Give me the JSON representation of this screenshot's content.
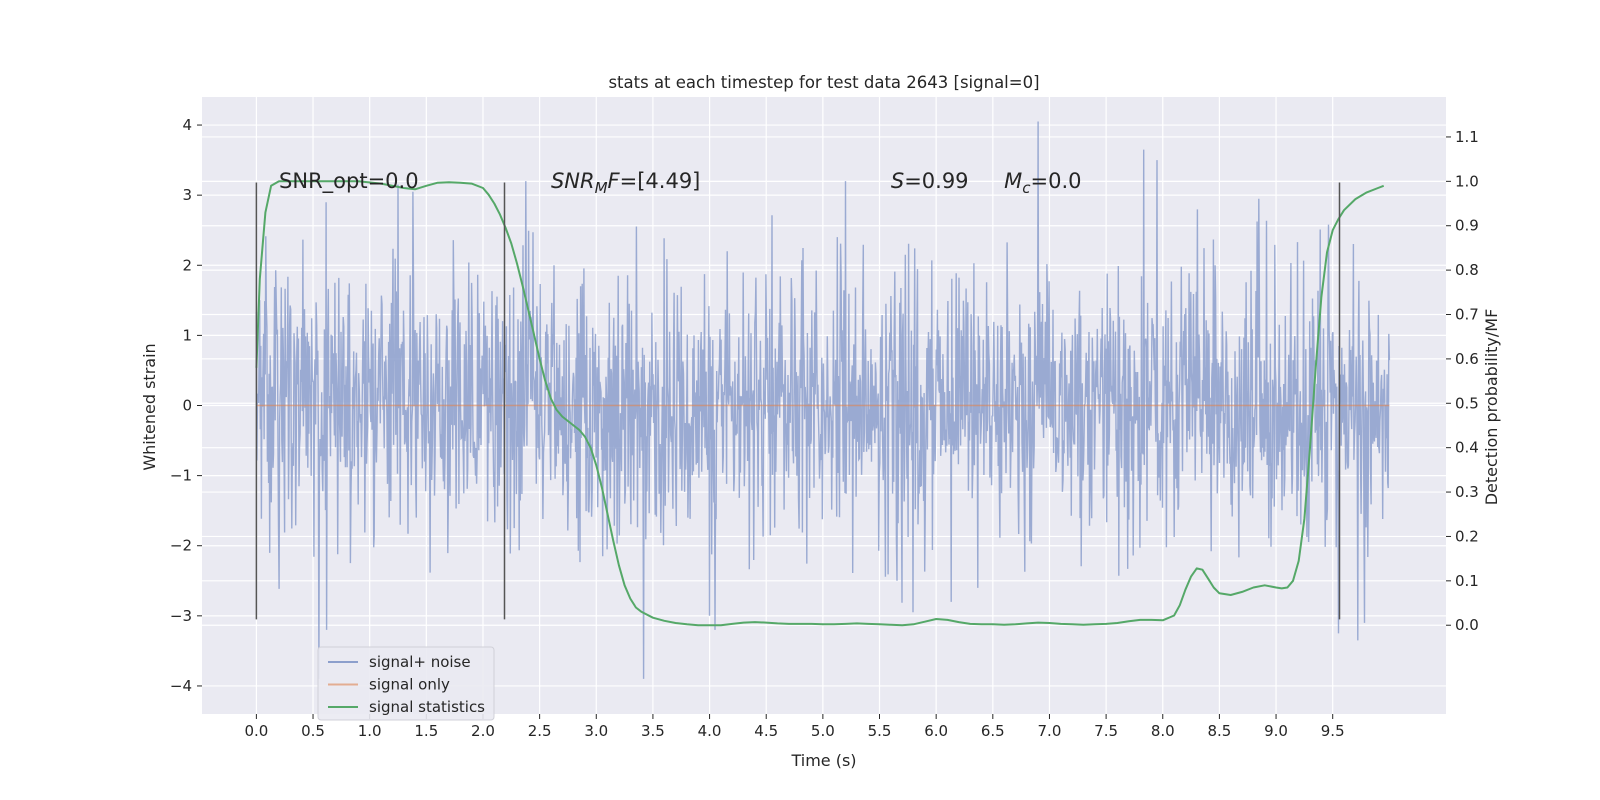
{
  "chart_data": {
    "type": "line",
    "title": "stats at each timestep for test data 2643 [signal=0]",
    "xlabel": "Time (s)",
    "ylabel": "Whitened strain",
    "y2label": "Detection probability/MF",
    "xlim": [
      -0.48,
      10.5
    ],
    "ylim": [
      -4.4,
      4.4
    ],
    "y2lim": [
      -0.2,
      1.19
    ],
    "x_ticks": [
      0.0,
      0.5,
      1.0,
      1.5,
      2.0,
      2.5,
      3.0,
      3.5,
      4.0,
      4.5,
      5.0,
      5.5,
      6.0,
      6.5,
      7.0,
      7.5,
      8.0,
      8.5,
      9.0,
      9.5
    ],
    "x_tick_labels": [
      "0.0",
      "0.5",
      "1.0",
      "1.5",
      "2.0",
      "2.5",
      "3.0",
      "3.5",
      "4.0",
      "4.5",
      "5.0",
      "5.5",
      "6.0",
      "6.5",
      "7.0",
      "7.5",
      "8.0",
      "8.5",
      "9.0",
      "9.5"
    ],
    "y_ticks": [
      -4,
      -3,
      -2,
      -1,
      0,
      1,
      2,
      3,
      4
    ],
    "y_tick_labels": [
      "−4",
      "−3",
      "−2",
      "−1",
      "0",
      "1",
      "2",
      "3",
      "4"
    ],
    "y2_ticks": [
      0.0,
      0.1,
      0.2,
      0.3,
      0.4,
      0.5,
      0.6,
      0.7,
      0.8,
      0.9,
      1.0,
      1.1
    ],
    "y2_tick_labels": [
      "0.0",
      "0.1",
      "0.2",
      "0.3",
      "0.4",
      "0.5",
      "0.6",
      "0.7",
      "0.8",
      "0.9",
      "1.0",
      "1.1"
    ],
    "grid": true,
    "legend_position": "lower-left",
    "annotations": [
      {
        "x": 0.2,
        "y": 3.1,
        "parts": [
          {
            "t": "SNR_opt=0.0",
            "i": false
          }
        ]
      },
      {
        "x": 2.6,
        "y": 3.1,
        "parts": [
          {
            "t": "SNR",
            "i": true
          },
          {
            "t": "M",
            "i": true,
            "sub": true
          },
          {
            "t": "F",
            "i": true
          },
          {
            "t": "=[4.49]",
            "i": false
          }
        ]
      },
      {
        "x": 5.6,
        "y": 3.1,
        "parts": [
          {
            "t": "S",
            "i": true
          },
          {
            "t": "=0.99",
            "i": false
          }
        ]
      },
      {
        "x": 6.6,
        "y": 3.1,
        "parts": [
          {
            "t": "M",
            "i": true
          },
          {
            "t": "c",
            "i": true,
            "sub": true
          },
          {
            "t": "=0.0",
            "i": false
          }
        ]
      }
    ],
    "vlines": [
      0.0,
      2.19,
      9.56
    ],
    "vline_range": [
      -3.05,
      3.18
    ],
    "series": [
      {
        "name": "signal+ noise",
        "axis": "left",
        "color": "#8c9fcc",
        "x_range": [
          0.0,
          10.0
        ],
        "sample_rate": 204.8,
        "sigma": 0.95,
        "seed": 2643,
        "peaks": [
          [
            0.55,
            -3.9
          ],
          [
            0.62,
            -3.2
          ],
          [
            1.25,
            3.15
          ],
          [
            1.38,
            3.05
          ],
          [
            2.38,
            3.2
          ],
          [
            3.42,
            -3.9
          ],
          [
            4.0,
            -3.0
          ],
          [
            4.05,
            -3.2
          ],
          [
            5.2,
            3.2
          ],
          [
            6.9,
            4.05
          ],
          [
            7.83,
            3.65
          ],
          [
            7.95,
            3.5
          ],
          [
            8.85,
            2.95
          ],
          [
            9.55,
            -3.25
          ],
          [
            9.72,
            -3.35
          ],
          [
            9.78,
            -3.1
          ]
        ]
      },
      {
        "name": "signal only",
        "axis": "left",
        "color": "#dd8452",
        "x": [
          0.0,
          10.0
        ],
        "y": [
          0.0,
          0.0
        ]
      },
      {
        "name": "signal statistics",
        "axis": "right",
        "color": "#55a868",
        "x": [
          0.0,
          0.03,
          0.08,
          0.13,
          0.2,
          0.3,
          0.5,
          0.7,
          0.9,
          1.1,
          1.3,
          1.4,
          1.5,
          1.6,
          1.7,
          1.8,
          1.9,
          2.0,
          2.05,
          2.1,
          2.15,
          2.2,
          2.25,
          2.3,
          2.35,
          2.4,
          2.45,
          2.5,
          2.55,
          2.6,
          2.65,
          2.7,
          2.75,
          2.8,
          2.85,
          2.9,
          2.95,
          3.0,
          3.05,
          3.1,
          3.15,
          3.2,
          3.25,
          3.3,
          3.35,
          3.4,
          3.5,
          3.6,
          3.7,
          3.8,
          3.9,
          4.0,
          4.1,
          4.2,
          4.3,
          4.4,
          4.5,
          4.6,
          4.7,
          4.8,
          4.9,
          5.0,
          5.1,
          5.2,
          5.3,
          5.4,
          5.5,
          5.6,
          5.7,
          5.8,
          5.9,
          6.0,
          6.1,
          6.2,
          6.3,
          6.4,
          6.5,
          6.6,
          6.7,
          6.8,
          6.9,
          7.0,
          7.1,
          7.2,
          7.3,
          7.4,
          7.5,
          7.6,
          7.7,
          7.8,
          7.9,
          8.0,
          8.1,
          8.15,
          8.2,
          8.25,
          8.3,
          8.35,
          8.4,
          8.45,
          8.5,
          8.6,
          8.7,
          8.8,
          8.9,
          9.0,
          9.05,
          9.1,
          9.15,
          9.2,
          9.25,
          9.3,
          9.35,
          9.4,
          9.45,
          9.5,
          9.55,
          9.6,
          9.7,
          9.8,
          9.9,
          9.95
        ],
        "y": [
          0.58,
          0.78,
          0.93,
          0.99,
          1.0,
          1.0,
          1.0,
          1.0,
          1.0,
          0.995,
          0.985,
          0.982,
          0.99,
          0.997,
          0.998,
          0.997,
          0.995,
          0.985,
          0.97,
          0.95,
          0.925,
          0.895,
          0.86,
          0.815,
          0.765,
          0.71,
          0.655,
          0.6,
          0.55,
          0.51,
          0.485,
          0.47,
          0.46,
          0.45,
          0.44,
          0.425,
          0.4,
          0.36,
          0.31,
          0.25,
          0.19,
          0.135,
          0.09,
          0.06,
          0.04,
          0.03,
          0.017,
          0.01,
          0.005,
          0.002,
          0.0,
          0.0,
          0.0,
          0.003,
          0.006,
          0.007,
          0.006,
          0.004,
          0.003,
          0.003,
          0.003,
          0.002,
          0.002,
          0.003,
          0.004,
          0.003,
          0.002,
          0.001,
          0.0,
          0.002,
          0.008,
          0.014,
          0.012,
          0.007,
          0.003,
          0.002,
          0.002,
          0.001,
          0.002,
          0.004,
          0.006,
          0.005,
          0.003,
          0.002,
          0.001,
          0.002,
          0.003,
          0.005,
          0.009,
          0.012,
          0.012,
          0.011,
          0.022,
          0.045,
          0.08,
          0.11,
          0.128,
          0.125,
          0.105,
          0.085,
          0.072,
          0.068,
          0.075,
          0.085,
          0.09,
          0.085,
          0.083,
          0.085,
          0.1,
          0.145,
          0.24,
          0.4,
          0.58,
          0.74,
          0.84,
          0.89,
          0.915,
          0.935,
          0.96,
          0.975,
          0.985,
          0.99
        ]
      }
    ]
  }
}
